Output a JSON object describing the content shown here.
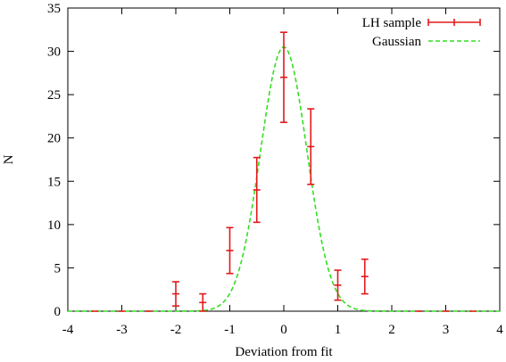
{
  "chart_data": {
    "type": "scatter",
    "xlabel": "Deviation from fit",
    "ylabel": "N",
    "xlim": [
      -4,
      4
    ],
    "ylim": [
      0,
      35
    ],
    "xticks": [
      -4,
      -3,
      -2,
      -1,
      0,
      1,
      2,
      3,
      4
    ],
    "yticks": [
      0,
      5,
      10,
      15,
      20,
      25,
      30,
      35
    ],
    "grid": false,
    "legend_position": "top-right",
    "series": [
      {
        "name": "LH sample",
        "kind": "errorbar",
        "color": "#e31a1c",
        "points": [
          {
            "x": -3.5,
            "y": 0,
            "err": 0
          },
          {
            "x": -3.0,
            "y": 0,
            "err": 0
          },
          {
            "x": -2.5,
            "y": 0,
            "err": 0
          },
          {
            "x": -2.0,
            "y": 2,
            "err": 1.4
          },
          {
            "x": -1.5,
            "y": 1,
            "err": 1.0
          },
          {
            "x": -1.0,
            "y": 7,
            "err": 2.65
          },
          {
            "x": -0.5,
            "y": 14,
            "err": 3.74
          },
          {
            "x": 0.0,
            "y": 27,
            "err": 5.2
          },
          {
            "x": 0.5,
            "y": 19,
            "err": 4.36
          },
          {
            "x": 1.0,
            "y": 3,
            "err": 1.73
          },
          {
            "x": 1.5,
            "y": 4,
            "err": 2.0
          },
          {
            "x": 2.5,
            "y": 0,
            "err": 0
          },
          {
            "x": 3.0,
            "y": 0,
            "err": 0
          },
          {
            "x": 3.5,
            "y": 0,
            "err": 0
          }
        ]
      },
      {
        "name": "Gaussian",
        "kind": "curve",
        "style": "dashed",
        "color": "#33dd22",
        "amplitude": 30.5,
        "mean": 0.0,
        "sigma": 0.43,
        "x_range": [
          -4,
          4
        ]
      }
    ]
  }
}
